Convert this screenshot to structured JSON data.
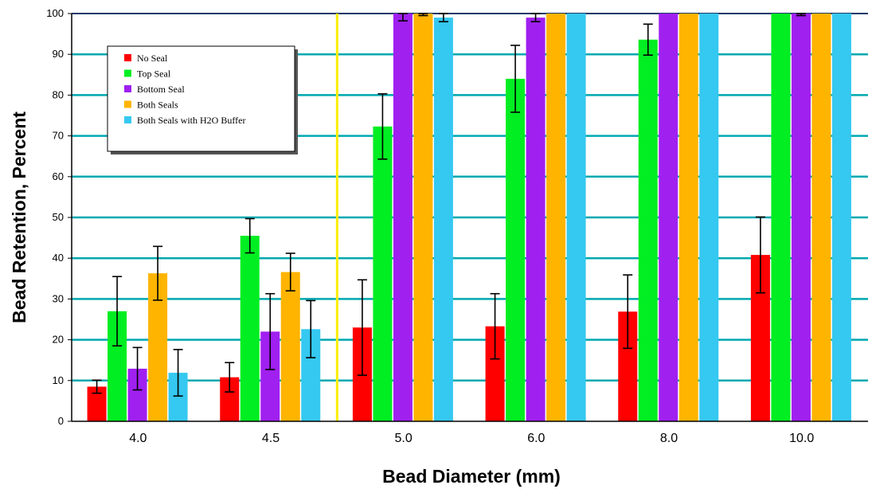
{
  "chart_data": {
    "type": "bar",
    "xlabel": "Bead Diameter (mm)",
    "ylabel": "Bead Retention, Percent",
    "ylim": [
      0,
      100
    ],
    "yticks": [
      0,
      10,
      20,
      30,
      40,
      50,
      60,
      70,
      80,
      90,
      100
    ],
    "categories": [
      "4.0",
      "4.5",
      "5.0",
      "6.0",
      "8.0",
      "10.0"
    ],
    "grid": true,
    "legend_position": "top-left",
    "series": [
      {
        "name": "No Seal",
        "color": "#ff0000",
        "values": [
          8.5,
          10.8,
          23.0,
          23.3,
          26.9,
          40.8
        ],
        "errors": [
          1.6,
          3.6,
          11.7,
          8.0,
          9.0,
          9.3
        ]
      },
      {
        "name": "Top Seal",
        "color": "#00ee22",
        "values": [
          27.0,
          45.5,
          72.3,
          84.0,
          93.6,
          100
        ],
        "errors": [
          8.5,
          4.2,
          8.0,
          8.2,
          3.8,
          0
        ]
      },
      {
        "name": "Bottom Seal",
        "color": "#a020f0",
        "values": [
          12.9,
          22.0,
          100,
          99.0,
          100,
          100
        ],
        "errors": [
          5.2,
          9.3,
          1.8,
          1.0,
          0,
          0.5
        ]
      },
      {
        "name": "Both Seals",
        "color": "#ffb400",
        "values": [
          36.3,
          36.6,
          100,
          100,
          100,
          100
        ],
        "errors": [
          6.6,
          4.6,
          0.5,
          0,
          0,
          0
        ]
      },
      {
        "name": "Both Seals with H2O Buffer",
        "color": "#35c8f0",
        "values": [
          11.9,
          22.6,
          99.0,
          100,
          100,
          100
        ],
        "errors": [
          5.7,
          7.0,
          1.0,
          0,
          0,
          0
        ]
      }
    ],
    "reference_line": {
      "color": "#ffee00"
    }
  }
}
